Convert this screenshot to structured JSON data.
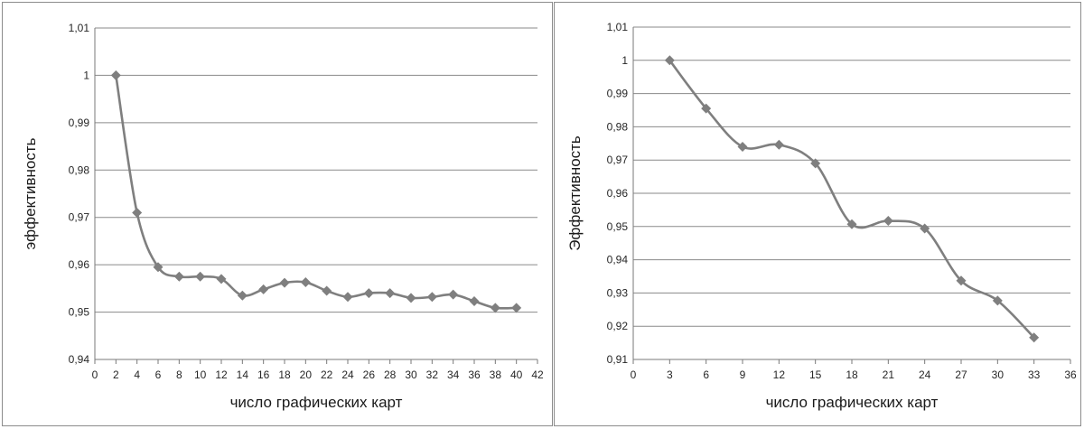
{
  "chart_data": [
    {
      "type": "line",
      "xlabel": "число графических карт",
      "ylabel": "эффективность",
      "xlim": [
        0,
        42
      ],
      "ylim": [
        0.94,
        1.01
      ],
      "x_ticks": [
        "0",
        "2",
        "4",
        "6",
        "8",
        "10",
        "12",
        "14",
        "16",
        "18",
        "20",
        "22",
        "24",
        "26",
        "28",
        "30",
        "32",
        "34",
        "36",
        "38",
        "40",
        "42"
      ],
      "y_ticks": [
        "0,94",
        "0,95",
        "0,96",
        "0,97",
        "0,98",
        "0,99",
        "1",
        "1,01"
      ],
      "series": [
        {
          "x": [
            2,
            4,
            6,
            8,
            10,
            12,
            14,
            16,
            18,
            20,
            22,
            24,
            26,
            28,
            30,
            32,
            34,
            36,
            38,
            40
          ],
          "values": [
            1.0,
            0.971,
            0.9595,
            0.9575,
            0.9575,
            0.957,
            0.9535,
            0.9548,
            0.9562,
            0.9563,
            0.9545,
            0.9532,
            0.954,
            0.954,
            0.953,
            0.9532,
            0.9537,
            0.9523,
            0.9509,
            0.9509
          ],
          "color": "#7f7f7f"
        }
      ],
      "grid": "horizontal",
      "marker": "diamond"
    },
    {
      "type": "line",
      "xlabel": "число графических карт",
      "ylabel": "Эффективность",
      "xlim": [
        0,
        36
      ],
      "ylim": [
        0.91,
        1.01
      ],
      "x_ticks": [
        "0",
        "3",
        "6",
        "9",
        "12",
        "15",
        "18",
        "21",
        "24",
        "27",
        "30",
        "33",
        "36"
      ],
      "y_ticks": [
        "0,91",
        "0,92",
        "0,93",
        "0,94",
        "0,95",
        "0,96",
        "0,97",
        "0,98",
        "0,99",
        "1",
        "1,01"
      ],
      "series": [
        {
          "x": [
            3,
            6,
            9,
            12,
            15,
            18,
            21,
            24,
            27,
            30,
            33
          ],
          "values": [
            1.0,
            0.9855,
            0.974,
            0.9746,
            0.969,
            0.9507,
            0.9517,
            0.9494,
            0.9337,
            0.9277,
            0.9166
          ],
          "color": "#7f7f7f"
        }
      ],
      "grid": "horizontal",
      "marker": "diamond"
    }
  ]
}
